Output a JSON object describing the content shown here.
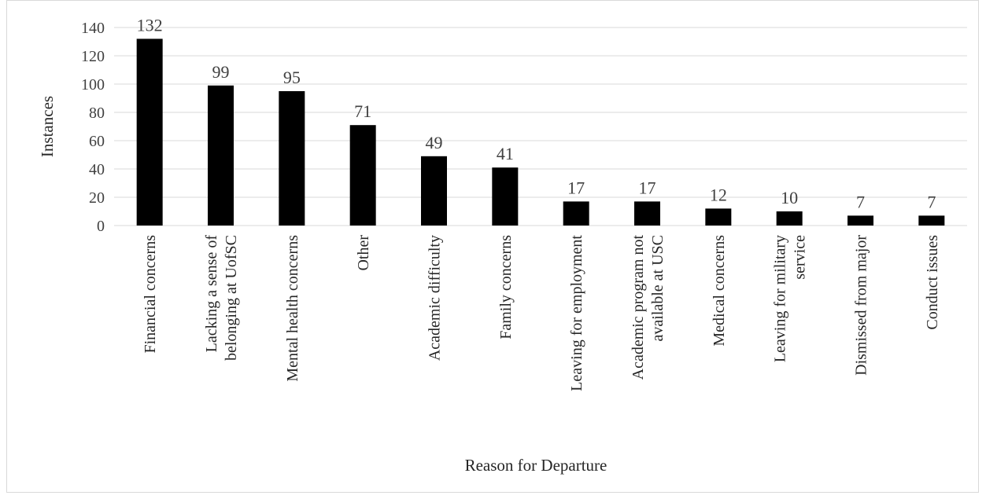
{
  "chart_data": {
    "type": "bar",
    "xlabel": "Reason for Departure",
    "ylabel": "Instances",
    "ylim": [
      0,
      140
    ],
    "yticks": [
      0,
      20,
      40,
      60,
      80,
      100,
      120,
      140
    ],
    "grid": true,
    "bar_color": "#000000",
    "grid_color": "#d9d9d9",
    "categories": [
      [
        "Financial concerns"
      ],
      [
        "Lacking a sense of",
        "belonging at UofSC"
      ],
      [
        "Mental health concerns"
      ],
      [
        "Other"
      ],
      [
        "Academic difficulty"
      ],
      [
        "Family concerns"
      ],
      [
        "Leaving for employment"
      ],
      [
        "Academic program not",
        "available at USC"
      ],
      [
        "Medical concerns"
      ],
      [
        "Leaving for military",
        "service"
      ],
      [
        "Dismissed from major"
      ],
      [
        "Conduct issues"
      ]
    ],
    "values": [
      132,
      99,
      95,
      71,
      49,
      41,
      17,
      17,
      12,
      10,
      7,
      7
    ]
  }
}
